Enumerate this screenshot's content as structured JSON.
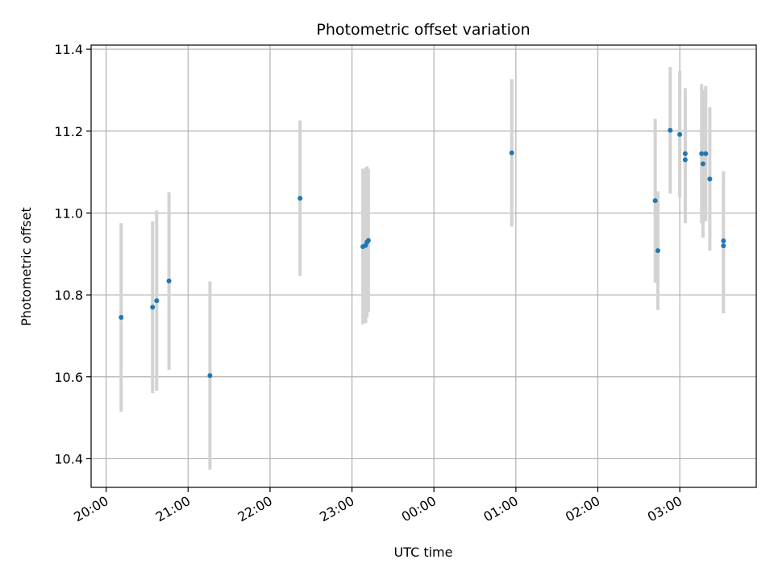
{
  "chart_data": {
    "type": "scatter",
    "title": "Photometric offset variation",
    "xlabel": "UTC time",
    "ylabel": "Photometric offset",
    "x_unit": "UTC time (HH:MM)",
    "xlim": [
      "19:49",
      "03:56"
    ],
    "ylim": [
      10.33,
      11.41
    ],
    "x_ticks": [
      {
        "value": "20:00",
        "label": "20:00"
      },
      {
        "value": "21:00",
        "label": "21:00"
      },
      {
        "value": "22:00",
        "label": "22:00"
      },
      {
        "value": "23:00",
        "label": "23:00"
      },
      {
        "value": "00:00",
        "label": "00:00"
      },
      {
        "value": "01:00",
        "label": "01:00"
      },
      {
        "value": "02:00",
        "label": "02:00"
      },
      {
        "value": "03:00",
        "label": "03:00"
      }
    ],
    "y_ticks": [
      10.4,
      10.6,
      10.8,
      11.0,
      11.2,
      11.4
    ],
    "grid": true,
    "legend": "none",
    "colors": {
      "points": "#1f77b4",
      "errorbars": "#d3d3d3",
      "grid": "#b0b0b0"
    },
    "points": [
      {
        "x": "20:11",
        "y": 10.745,
        "err": 0.23
      },
      {
        "x": "20:34",
        "y": 10.77,
        "err": 0.21
      },
      {
        "x": "20:37",
        "y": 10.786,
        "err": 0.22
      },
      {
        "x": "20:46",
        "y": 10.834,
        "err": 0.217
      },
      {
        "x": "21:16",
        "y": 10.603,
        "err": 0.23
      },
      {
        "x": "22:22",
        "y": 11.036,
        "err": 0.19
      },
      {
        "x": "23:08",
        "y": 10.918,
        "err": 0.19
      },
      {
        "x": "23:10",
        "y": 10.921,
        "err": 0.19
      },
      {
        "x": "23:11",
        "y": 10.929,
        "err": 0.185
      },
      {
        "x": "23:12",
        "y": 10.933,
        "err": 0.175
      },
      {
        "x": "00:57",
        "y": 11.147,
        "err": 0.18
      },
      {
        "x": "02:42",
        "y": 11.03,
        "err": 0.2
      },
      {
        "x": "02:44",
        "y": 10.908,
        "err": 0.145
      },
      {
        "x": "02:53",
        "y": 11.202,
        "err": 0.155
      },
      {
        "x": "03:00",
        "y": 11.192,
        "err": 0.155
      },
      {
        "x": "03:04",
        "y": 11.13,
        "err": 0.155
      },
      {
        "x": "03:04",
        "y": 11.145,
        "err": 0.16
      },
      {
        "x": "03:16",
        "y": 11.145,
        "err": 0.17
      },
      {
        "x": "03:17",
        "y": 11.12,
        "err": 0.18
      },
      {
        "x": "03:19",
        "y": 11.145,
        "err": 0.165
      },
      {
        "x": "03:22",
        "y": 11.083,
        "err": 0.175
      },
      {
        "x": "03:32",
        "y": 10.932,
        "err": 0.17
      },
      {
        "x": "03:32",
        "y": 10.92,
        "err": 0.165
      }
    ]
  }
}
